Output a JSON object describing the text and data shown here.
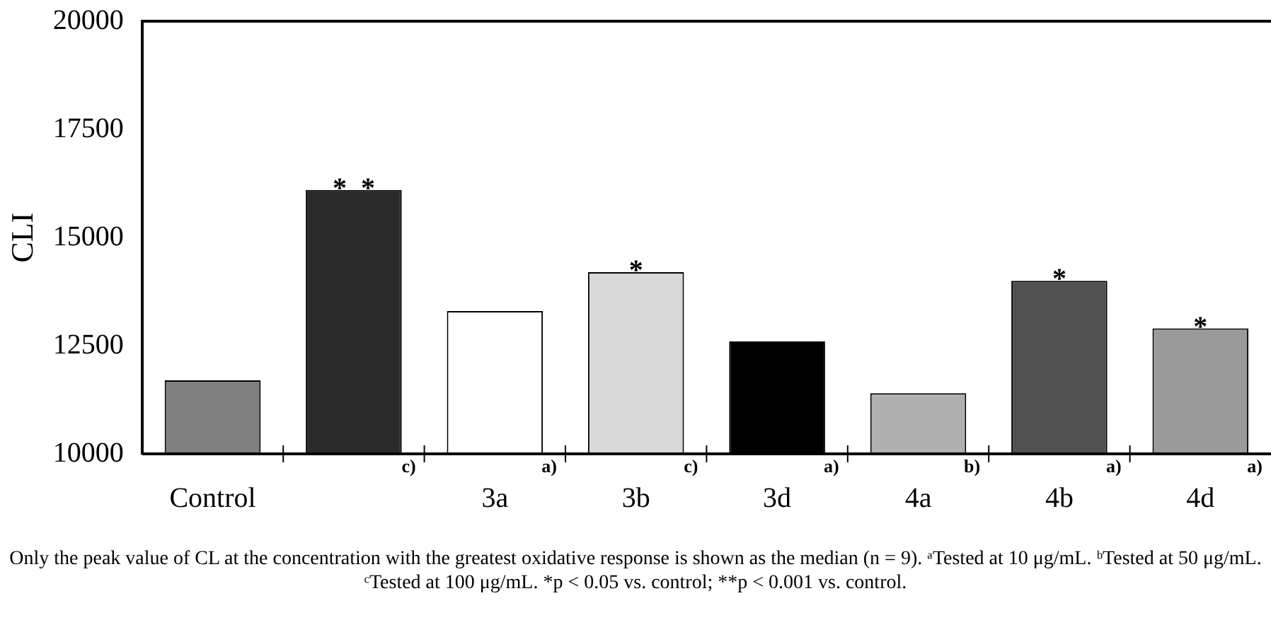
{
  "chart_data": {
    "type": "bar",
    "ylabel": "CLI",
    "categories": [
      "Control",
      null,
      "3a",
      "3b",
      "3d",
      "4a",
      "4b",
      "4d"
    ],
    "values": [
      11700,
      16100,
      13300,
      14200,
      12600,
      11400,
      14000,
      12900
    ],
    "colors": [
      "#808080",
      "#2b2b2b",
      "#ffffff",
      "#d9d9d9",
      "#000000",
      "#b0b0b0",
      "#505050",
      "#9a9a9a"
    ],
    "value_labels": [
      null,
      "*  *",
      null,
      "*",
      null,
      null,
      "*",
      "*"
    ],
    "ylim": [
      10000,
      20000
    ],
    "yticks": [
      10000,
      12500,
      15000,
      17500,
      20000
    ],
    "grid": false,
    "legend": false,
    "annotations": [
      "c)",
      "a)",
      "c)",
      "a)",
      "b)",
      "a)",
      "a)",
      "Only the peak value of CL at the concentration with the greatest oxidative response is shown as the median (n = 9). ᵃTested at 10 μg/mL. ᵇTested at 50 μg/mL. ᶜTested at 100 μg/mL. *p < 0.05 vs. control; **p < 0.001 vs. control."
    ]
  }
}
